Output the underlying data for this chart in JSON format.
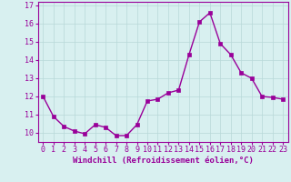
{
  "x": [
    0,
    1,
    2,
    3,
    4,
    5,
    6,
    7,
    8,
    9,
    10,
    11,
    12,
    13,
    14,
    15,
    16,
    17,
    18,
    19,
    20,
    21,
    22,
    23
  ],
  "y": [
    12.0,
    10.9,
    10.35,
    10.1,
    9.95,
    10.45,
    10.3,
    9.85,
    9.85,
    10.45,
    11.75,
    11.85,
    12.2,
    12.35,
    14.3,
    16.1,
    16.6,
    14.9,
    14.3,
    13.3,
    13.0,
    12.0,
    11.95,
    11.85
  ],
  "xlabel": "Windchill (Refroidissement éolien,°C)",
  "ylim": [
    9.5,
    17.2
  ],
  "xlim": [
    -0.5,
    23.5
  ],
  "yticks": [
    10,
    11,
    12,
    13,
    14,
    15,
    16,
    17
  ],
  "xticks": [
    0,
    1,
    2,
    3,
    4,
    5,
    6,
    7,
    8,
    9,
    10,
    11,
    12,
    13,
    14,
    15,
    16,
    17,
    18,
    19,
    20,
    21,
    22,
    23
  ],
  "line_color": "#990099",
  "marker": "s",
  "marker_size": 2.5,
  "bg_color": "#d8f0f0",
  "grid_color": "#b8d8d8",
  "tick_label_color": "#990099",
  "xlabel_color": "#990099",
  "xlabel_fontsize": 6.5,
  "tick_fontsize": 6.0,
  "line_width": 1.0
}
